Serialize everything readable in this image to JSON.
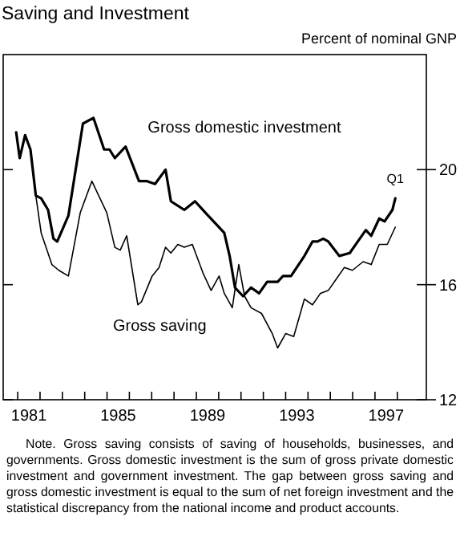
{
  "chart_data": {
    "type": "line",
    "title": "Saving and Investment",
    "ylabel": "Percent of nominal GNP",
    "annotations": [
      {
        "text": "Q1",
        "x": 1997.91,
        "y": 19.04
      },
      "Note. Gross saving consists of saving of households, businesses, and governments. Gross domestic investment is the sum of gross private domestic investment and government investment. The gap between gross saving and gross domestic investment is equal to the sum of net foreign investment and the statistical discrepancy from the national income and product accounts."
    ],
    "xlim": [
      1980.35,
      1999.3
    ],
    "ylim": [
      12,
      24
    ],
    "yticks": [
      12,
      16,
      20
    ],
    "xticks": [
      {
        "value": 1981,
        "label": null
      },
      {
        "value": 1981.5,
        "label": "1981"
      },
      {
        "value": 1982,
        "label": null
      },
      {
        "value": 1983,
        "label": null
      },
      {
        "value": 1984,
        "label": null
      },
      {
        "value": 1985,
        "label": null
      },
      {
        "value": 1985.5,
        "label": "1985"
      },
      {
        "value": 1986,
        "label": null
      },
      {
        "value": 1987,
        "label": null
      },
      {
        "value": 1988,
        "label": null
      },
      {
        "value": 1989,
        "label": null
      },
      {
        "value": 1989.5,
        "label": "1989"
      },
      {
        "value": 1990,
        "label": null
      },
      {
        "value": 1991,
        "label": null
      },
      {
        "value": 1992,
        "label": null
      },
      {
        "value": 1993,
        "label": null
      },
      {
        "value": 1993.5,
        "label": "1993"
      },
      {
        "value": 1994,
        "label": null
      },
      {
        "value": 1995,
        "label": null
      },
      {
        "value": 1996,
        "label": null
      },
      {
        "value": 1997,
        "label": null
      },
      {
        "value": 1997.5,
        "label": "1997"
      },
      {
        "value": 1998,
        "label": null
      }
    ],
    "series": [
      {
        "name": "Gross domestic investment",
        "color": "#000000",
        "x": [
          1980.93,
          1981.09,
          1981.33,
          1981.57,
          1981.81,
          1982.05,
          1982.36,
          1982.6,
          1982.77,
          1983.27,
          1983.92,
          1984.39,
          1984.87,
          1985.11,
          1985.35,
          1985.83,
          1986.43,
          1986.79,
          1987.15,
          1987.62,
          1987.86,
          1988.46,
          1988.94,
          1989.41,
          1989.89,
          1990.25,
          1990.49,
          1990.73,
          1991.09,
          1991.45,
          1991.81,
          1992.17,
          1992.64,
          1992.88,
          1993.24,
          1993.84,
          1994.2,
          1994.43,
          1994.68,
          1994.91,
          1995.4,
          1995.87,
          1996.23,
          1996.59,
          1996.83,
          1997.19,
          1997.43,
          1997.78,
          1997.91
        ],
        "values": [
          21.3,
          20.4,
          21.2,
          20.7,
          19.1,
          19.0,
          18.6,
          17.6,
          17.5,
          18.4,
          21.6,
          21.8,
          20.7,
          20.7,
          20.4,
          20.8,
          19.6,
          19.6,
          19.5,
          20.0,
          18.9,
          18.6,
          18.9,
          18.5,
          18.1,
          17.8,
          17.0,
          15.9,
          15.6,
          15.9,
          15.7,
          16.1,
          16.1,
          16.3,
          16.3,
          17.0,
          17.5,
          17.5,
          17.6,
          17.5,
          17.0,
          17.1,
          17.5,
          17.9,
          17.7,
          18.3,
          18.2,
          18.6,
          19.0
        ]
      },
      {
        "name": "Gross saving",
        "color": "#000000",
        "x": [
          1980.93,
          1981.09,
          1981.33,
          1981.57,
          1981.81,
          1982.05,
          1982.53,
          1982.84,
          1983.27,
          1983.8,
          1984.32,
          1984.99,
          1985.35,
          1985.59,
          1985.88,
          1986.38,
          1986.54,
          1987.02,
          1987.33,
          1987.62,
          1987.86,
          1988.17,
          1988.46,
          1988.82,
          1989.3,
          1989.66,
          1990.02,
          1990.25,
          1990.61,
          1990.9,
          1991.16,
          1991.45,
          1991.92,
          1992.4,
          1992.64,
          1993.0,
          1993.36,
          1993.84,
          1994.2,
          1994.56,
          1994.91,
          1995.27,
          1995.63,
          1995.99,
          1996.47,
          1996.83,
          1997.19,
          1997.55,
          1997.91
        ],
        "values": [
          21.3,
          20.4,
          21.2,
          20.7,
          19.1,
          17.8,
          16.7,
          16.5,
          16.3,
          18.5,
          19.6,
          18.5,
          17.3,
          17.2,
          17.7,
          15.3,
          15.4,
          16.3,
          16.6,
          17.3,
          17.1,
          17.4,
          17.3,
          17.4,
          16.4,
          15.8,
          16.3,
          15.7,
          15.2,
          16.7,
          15.6,
          15.2,
          15.0,
          14.3,
          13.8,
          14.3,
          14.2,
          15.5,
          15.3,
          15.7,
          15.8,
          16.2,
          16.6,
          16.5,
          16.8,
          16.7,
          17.4,
          17.4,
          18.0
        ]
      }
    ]
  }
}
